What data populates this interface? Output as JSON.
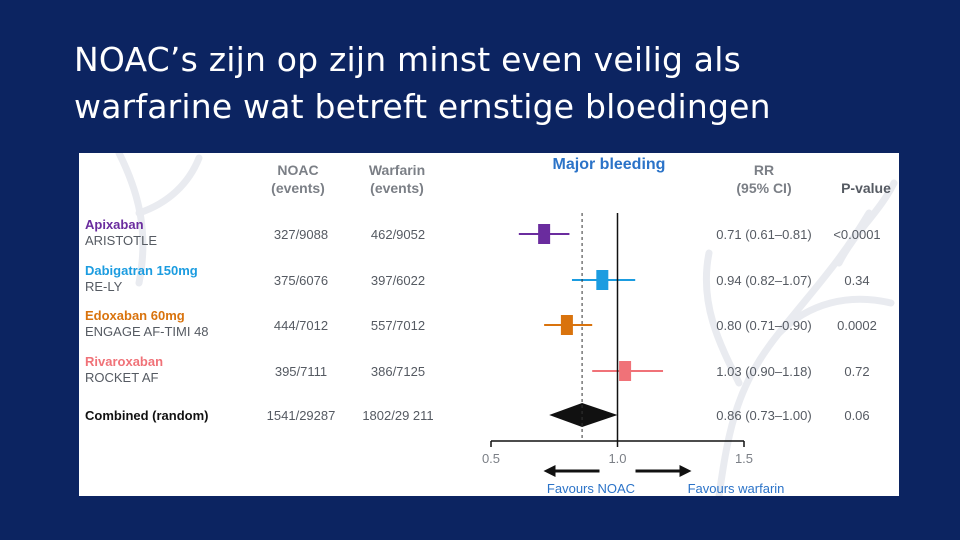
{
  "slide": {
    "title": "NOAC’s zijn op zijn  minst even veilig als\nwarfarine wat betreft ernstige bloedingen"
  },
  "colors": {
    "background": "#0c2461",
    "panel": "#ffffff",
    "header_gray": "#7b7f86",
    "title_blue": "#2b73c8",
    "apixaban": "#6a2c9e",
    "dabigatran": "#1b9ce0",
    "edoxaban": "#d9730d",
    "rivaroxaban": "#f07278",
    "combined": "#111111"
  },
  "chart_data": {
    "type": "forest",
    "title": "Major bleeding",
    "columns": {
      "noac": [
        "NOAC",
        "(events)"
      ],
      "warfarin": [
        "Warfarin",
        "(events)"
      ],
      "rr": [
        "RR",
        "(95% CI)"
      ],
      "p": "P-value"
    },
    "x_axis": {
      "range": [
        0.5,
        1.5
      ],
      "ticks": [
        "0.5",
        "1.0",
        "1.5"
      ],
      "reference": 1.0,
      "favours_left": "Favours NOAC",
      "favours_right": "Favours warfarin"
    },
    "studies": [
      {
        "drug": "Apixaban",
        "trial": "ARISTOTLE",
        "noac": "327/9088",
        "warfarin": "462/9052",
        "rr_text": "0.71 (0.61–0.81)",
        "p": "<0.0001",
        "rr": 0.71,
        "lo": 0.61,
        "hi": 0.81,
        "color": "#6a2c9e"
      },
      {
        "drug": "Dabigatran 150mg",
        "trial": "RE-LY",
        "noac": "375/6076",
        "warfarin": "397/6022",
        "rr_text": "0.94 (0.82–1.07)",
        "p": "0.34",
        "rr": 0.94,
        "lo": 0.82,
        "hi": 1.07,
        "color": "#1b9ce0"
      },
      {
        "drug": "Edoxaban 60mg",
        "trial": "ENGAGE AF-TIMI 48",
        "noac": "444/7012",
        "warfarin": "557/7012",
        "rr_text": "0.80 (0.71–0.90)",
        "p": "0.0002",
        "rr": 0.8,
        "lo": 0.71,
        "hi": 0.9,
        "color": "#d9730d"
      },
      {
        "drug": "Rivaroxaban",
        "trial": "ROCKET AF",
        "noac": "395/7111",
        "warfarin": "386/7125",
        "rr_text": "1.03 (0.90–1.18)",
        "p": "0.72",
        "rr": 1.03,
        "lo": 0.9,
        "hi": 1.18,
        "color": "#f07278"
      }
    ],
    "combined": {
      "label": "Combined (random)",
      "noac": "1541/29287",
      "warfarin": "1802/29 211",
      "rr_text": "0.86 (0.73–1.00)",
      "p": "0.06",
      "rr": 0.86,
      "lo": 0.73,
      "hi": 1.0
    }
  }
}
